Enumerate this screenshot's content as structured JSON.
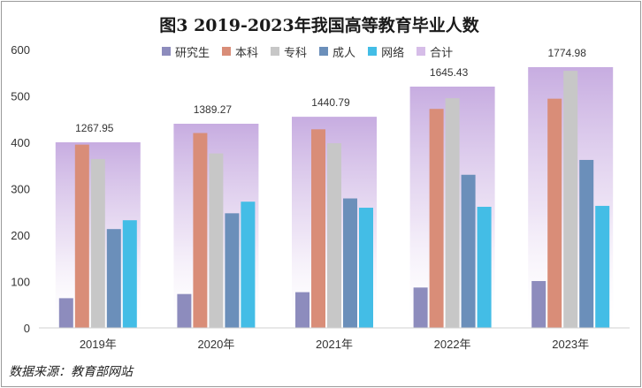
{
  "title": "图3  2019-2023年我国高等教育毕业人数",
  "source": "数据来源：教育部网站",
  "chart_data": {
    "type": "bar",
    "categories": [
      "2019年",
      "2020年",
      "2021年",
      "2022年",
      "2023年"
    ],
    "ylim": [
      0,
      600
    ],
    "yticks": [
      0,
      100,
      200,
      300,
      400,
      500,
      600
    ],
    "ytick_labels": [
      "0",
      "100",
      "200",
      "300",
      "400",
      "500",
      "600"
    ],
    "series": [
      {
        "name": "研究生",
        "color": "#8d8cbd",
        "values": [
          64,
          73,
          77,
          87,
          101
        ]
      },
      {
        "name": "本科",
        "color": "#d98d78",
        "values": [
          395,
          420,
          428,
          472,
          494
        ]
      },
      {
        "name": "专科",
        "color": "#c7c7c7",
        "values": [
          364,
          376,
          398,
          495,
          554
        ]
      },
      {
        "name": "成人",
        "color": "#6b8fba",
        "values": [
          213,
          247,
          279,
          330,
          362
        ]
      },
      {
        "name": "网络",
        "color": "#43bde6",
        "values": [
          232,
          272,
          259,
          261,
          263
        ]
      }
    ],
    "total": {
      "name": "合计",
      "color": "#d6bde8",
      "values": [
        1267.95,
        1389.27,
        1440.79,
        1645.43,
        1774.98
      ],
      "labels": [
        "1267.95",
        "1389.27",
        "1440.79",
        "1645.43",
        "1774.98"
      ],
      "display_values": [
        400,
        440,
        455,
        520,
        562
      ]
    },
    "legend_position": "top",
    "grid": false
  }
}
